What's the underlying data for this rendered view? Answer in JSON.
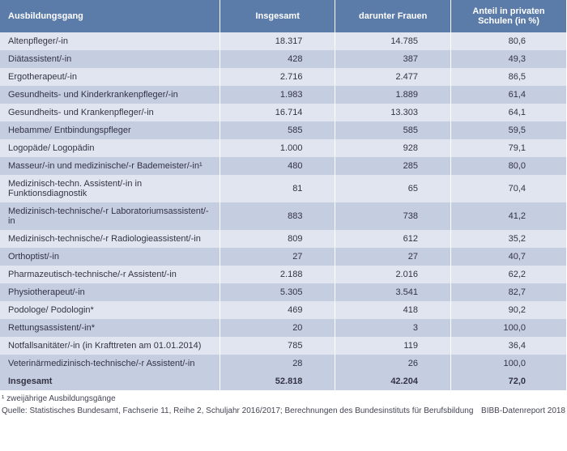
{
  "header": {
    "col1": "Ausbildungsgang",
    "col2": "Insgesamt",
    "col3": "darunter Frauen",
    "col4": "Anteil in privaten Schulen (in %)"
  },
  "rows": [
    {
      "label": "Altenpfleger/-in",
      "total": "18.317",
      "women": "14.785",
      "pct": "80,6"
    },
    {
      "label": "Diätassistent/-in",
      "total": "428",
      "women": "387",
      "pct": "49,3"
    },
    {
      "label": "Ergotherapeut/-in",
      "total": "2.716",
      "women": "2.477",
      "pct": "86,5"
    },
    {
      "label": "Gesundheits- und Kinderkrankenpfleger/-in",
      "total": "1.983",
      "women": "1.889",
      "pct": "61,4"
    },
    {
      "label": "Gesundheits- und Krankenpfleger/-in",
      "total": "16.714",
      "women": "13.303",
      "pct": "64,1"
    },
    {
      "label": "Hebamme/ Entbindungspfleger",
      "total": "585",
      "women": "585",
      "pct": "59,5"
    },
    {
      "label": "Logopäde/ Logopädin",
      "total": "1.000",
      "women": "928",
      "pct": "79,1"
    },
    {
      "label": "Masseur/-in und medizinische/-r Bademeister/-in¹",
      "total": "480",
      "women": "285",
      "pct": "80,0"
    },
    {
      "label": "Medizinisch-techn. Assistent/-in in Funktionsdiagnostik",
      "total": "81",
      "women": "65",
      "pct": "70,4"
    },
    {
      "label": "Medizinisch-technische/-r Laboratoriumsassistent/-in",
      "total": "883",
      "women": "738",
      "pct": "41,2"
    },
    {
      "label": "Medizinisch-technische/-r Radiologieassistent/-in",
      "total": "809",
      "women": "612",
      "pct": "35,2"
    },
    {
      "label": "Orthoptist/-in",
      "total": "27",
      "women": "27",
      "pct": "40,7"
    },
    {
      "label": "Pharmazeutisch-technische/-r Assistent/-in",
      "total": "2.188",
      "women": "2.016",
      "pct": "62,2"
    },
    {
      "label": "Physiotherapeut/-in",
      "total": "5.305",
      "women": "3.541",
      "pct": "82,7"
    },
    {
      "label": "Podologe/ Podologin*",
      "total": "469",
      "women": "418",
      "pct": "90,2"
    },
    {
      "label": "Rettungsassistent/-in*",
      "total": "20",
      "women": "3",
      "pct": "100,0"
    },
    {
      "label": "Notfallsanitäter/-in (in Krafttreten am 01.01.2014)",
      "total": "785",
      "women": "119",
      "pct": "36,4"
    },
    {
      "label": "Veterinärmedizinisch-technische/-r Assistent/-in",
      "total": "28",
      "women": "26",
      "pct": "100,0"
    }
  ],
  "total_row": {
    "label": "Insgesamt",
    "total": "52.818",
    "women": "42.204",
    "pct": "72,0"
  },
  "footnote": "¹ zweijährige Ausbildungsgänge",
  "source": "Quelle: Statistisches Bundesamt, Fachserie 11, Reihe 2, Schuljahr 2016/2017; Berechnungen des Bundesinstituts für Berufsbildung",
  "report": "BIBB-Datenreport 2018",
  "colors": {
    "header_bg": "#5b7ba8",
    "row_odd": "#e1e5f0",
    "row_even": "#c5cde0",
    "text": "#333344"
  }
}
